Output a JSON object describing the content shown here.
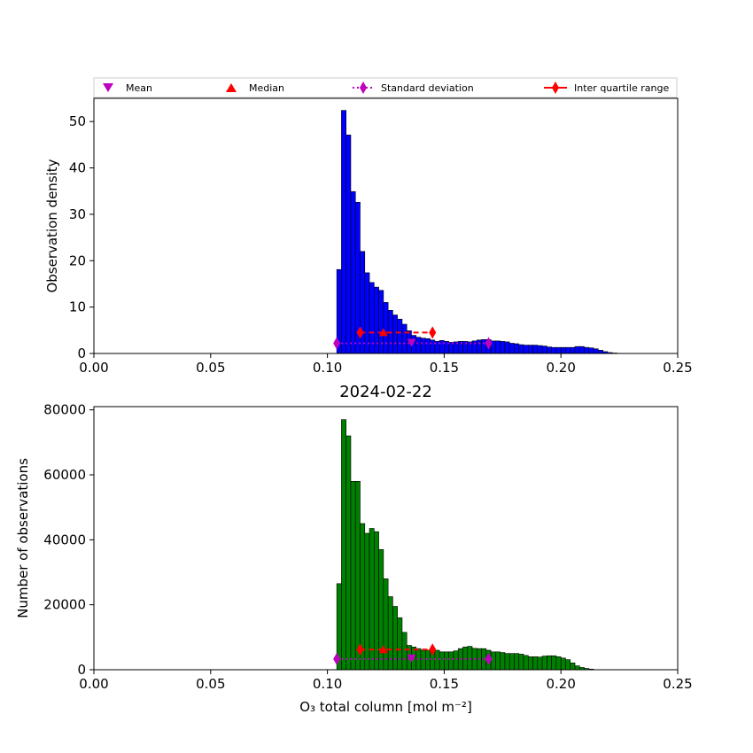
{
  "figure": {
    "title_between": "2024-02-22"
  },
  "legend": {
    "entries": [
      {
        "label": "Mean",
        "marker": "triangle-down",
        "color": "#bf00bf"
      },
      {
        "label": "Median",
        "marker": "triangle-up",
        "color": "#ff0000"
      },
      {
        "label": "Standard deviation",
        "marker": "thin-diamond",
        "color": "#bf00bf",
        "line": "dotted"
      },
      {
        "label": "Inter quartile range",
        "marker": "thin-diamond",
        "color": "#ff0000",
        "line": "dashed"
      }
    ]
  },
  "chart_data": [
    {
      "type": "bar",
      "subtype": "histogram",
      "bar_color": "#0000ff",
      "xlabel": "",
      "ylabel": "Observation density",
      "xlim": [
        0.0,
        0.25
      ],
      "ylim": [
        0,
        55
      ],
      "xticks": [
        "0.00",
        "0.05",
        "0.10",
        "0.15",
        "0.20",
        "0.25"
      ],
      "yticks": [
        "0",
        "10",
        "20",
        "30",
        "40",
        "50"
      ],
      "ytick_values": [
        0,
        10,
        20,
        30,
        40,
        50
      ],
      "bin_start": 0.104,
      "bin_width": 0.002,
      "values": [
        18.1,
        52.4,
        47.1,
        34.9,
        32.6,
        22.0,
        17.4,
        15.3,
        14.3,
        13.6,
        11.0,
        9.3,
        8.3,
        7.4,
        6.3,
        4.9,
        3.9,
        3.5,
        3.3,
        3.2,
        2.9,
        2.6,
        2.8,
        2.6,
        2.4,
        2.5,
        2.6,
        2.6,
        2.5,
        2.7,
        2.9,
        3.0,
        3.0,
        2.7,
        2.7,
        2.6,
        2.5,
        2.2,
        2.1,
        1.9,
        1.8,
        1.8,
        1.8,
        1.7,
        1.6,
        1.4,
        1.3,
        1.3,
        1.3,
        1.3,
        1.3,
        1.5,
        1.5,
        1.3,
        1.2,
        1.0,
        0.7,
        0.4,
        0.2,
        0.1
      ],
      "stats": {
        "mean": {
          "x": 0.136,
          "y": 2.2
        },
        "median": {
          "x": 0.124,
          "y": 4.5
        },
        "std": {
          "x": [
            0.104,
            0.169
          ],
          "y": 2.2
        },
        "iqr": {
          "x": [
            0.114,
            0.145
          ],
          "y": 4.5
        }
      }
    },
    {
      "type": "bar",
      "subtype": "histogram",
      "bar_color": "#008000",
      "title": "2024-02-22",
      "xlabel": "O₃ total column [mol m⁻²]",
      "ylabel": "Number of observations",
      "xlim": [
        0.0,
        0.25
      ],
      "ylim": [
        0,
        81000
      ],
      "xticks": [
        "0.00",
        "0.05",
        "0.10",
        "0.15",
        "0.20",
        "0.25"
      ],
      "yticks": [
        "0",
        "20000",
        "40000",
        "60000",
        "80000"
      ],
      "ytick_values": [
        0,
        20000,
        40000,
        60000,
        80000
      ],
      "bin_start": 0.104,
      "bin_width": 0.002,
      "values": [
        26500,
        77000,
        72000,
        58000,
        58000,
        45000,
        42000,
        43500,
        42500,
        37000,
        28000,
        22500,
        19500,
        16000,
        11500,
        7500,
        7000,
        6500,
        6000,
        6000,
        6500,
        6000,
        5500,
        5500,
        5500,
        5800,
        6500,
        7000,
        7200,
        6600,
        6500,
        6500,
        6000,
        5500,
        5500,
        5300,
        5000,
        5000,
        5000,
        4800,
        4400,
        4000,
        4000,
        3900,
        4200,
        4300,
        4300,
        4000,
        3600,
        3100,
        2100,
        1200,
        700,
        400,
        200
      ],
      "stats": {
        "mean": {
          "x": 0.136,
          "y": 3300
        },
        "median": {
          "x": 0.124,
          "y": 6200
        },
        "std": {
          "x": [
            0.104,
            0.169
          ],
          "y": 3300
        },
        "iqr": {
          "x": [
            0.114,
            0.145
          ],
          "y": 6200
        }
      }
    }
  ]
}
